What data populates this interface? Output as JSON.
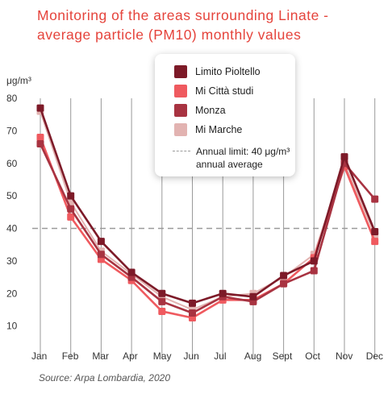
{
  "title_lines": [
    "Monitoring of the areas surrounding Linate -",
    "average particle (PM10) monthly values"
  ],
  "source": "Source: Arpa Lombardia, 2020",
  "legend": {
    "limit_line1": "Annual limit: 40 μg/m³",
    "limit_line2": "annual average"
  },
  "chart_data": {
    "type": "line",
    "title": "Monitoring of the areas surrounding Linate - average particle (PM10) monthly values",
    "ylabel": "μg/m³",
    "ylim": [
      0,
      80
    ],
    "yticks": [
      10,
      20,
      30,
      40,
      50,
      60,
      70,
      80
    ],
    "grid": "vertical",
    "legend_position": "top-center",
    "categories": [
      "Jan",
      "Feb",
      "Mar",
      "Apr",
      "May",
      "Jun",
      "Jul",
      "Aug",
      "Sept",
      "Oct",
      "Nov",
      "Dec"
    ],
    "reference_line": {
      "value": 40,
      "label": "Annual limit: 40 μg/m³ annual average"
    },
    "series": [
      {
        "name": "Mi Marche",
        "color": "#e2b3b1",
        "width": 2,
        "values": [
          76,
          48,
          33,
          26,
          19,
          15,
          19,
          20,
          25,
          32,
          60,
          38
        ]
      },
      {
        "name": "Mi Città studi",
        "color": "#ef5a5f",
        "width": 2.6,
        "values": [
          68,
          43.5,
          30.5,
          24,
          14.5,
          12.5,
          18,
          18,
          23,
          31,
          59,
          36
        ]
      },
      {
        "name": "Monza",
        "color": "#a83341",
        "width": 2.6,
        "values": [
          66,
          46,
          32,
          25,
          17.5,
          14,
          19,
          17.5,
          23,
          27,
          60,
          49
        ]
      },
      {
        "name": "Limito Pioltello",
        "color": "#7d1a28",
        "width": 2.6,
        "values": [
          77,
          50,
          36,
          26.5,
          20,
          17,
          20,
          19,
          25.5,
          30,
          62,
          39
        ]
      }
    ],
    "legend_order": [
      "Limito Pioltello",
      "Mi Città studi",
      "Monza",
      "Mi Marche"
    ]
  }
}
